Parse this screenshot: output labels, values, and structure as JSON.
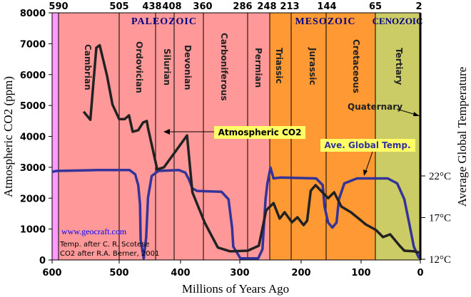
{
  "chart_data": {
    "type": "line",
    "xlabel": "Millions of Years Ago",
    "ylabel": "Atmospheric CO2 (ppm)",
    "y2label": "Average Global Temperature",
    "xlim": [
      600,
      0
    ],
    "ylim": [
      0,
      8000
    ],
    "y2lim": [
      12,
      22
    ],
    "x_ticks": [
      600,
      500,
      400,
      300,
      200,
      100,
      0
    ],
    "y_ticks": [
      0,
      1000,
      2000,
      3000,
      4000,
      5000,
      6000,
      7000,
      8000
    ],
    "y2_ticks": [
      "12°C",
      "17°C",
      "22°C"
    ],
    "top_ticks": [
      "590",
      "505",
      "438",
      "408",
      "360",
      "286",
      "248",
      "213",
      "144",
      "65",
      "2"
    ],
    "eras": [
      {
        "name": "PALEOZOIC",
        "color": "#ff9999"
      },
      {
        "name": "MESOZOIC",
        "color": "#ff9933"
      },
      {
        "name": "CENOZOIC",
        "color": "#cccc66"
      }
    ],
    "precambrian_color": "#ff99ff",
    "periods": [
      "Cambrian",
      "Ordovician",
      "Silurian",
      "Devonian",
      "Carboniferous",
      "Permian",
      "Triassic",
      "Jurassic",
      "Cretaceous",
      "Tertiary"
    ],
    "quaternary_label": "Quaternary",
    "series": [
      {
        "name": "Atmospheric CO2",
        "axis": "left",
        "color": "#222222",
        "label_bg": "#ffff66",
        "x": [
          553,
          543,
          534,
          529,
          518,
          510,
          500,
          491,
          484,
          478,
          469,
          461,
          455,
          453,
          438,
          427,
          389,
          380,
          359,
          337,
          316,
          287,
          269,
          257,
          245,
          235,
          227,
          215,
          206,
          196,
          190,
          184,
          176,
          155,
          145,
          133,
          117,
          104,
          92,
          75,
          63,
          51,
          35,
          27,
          10,
          0
        ],
        "y": [
          4800,
          4540,
          6870,
          6950,
          5950,
          5030,
          4560,
          4560,
          4680,
          4150,
          4200,
          4450,
          4500,
          4270,
          2930,
          3000,
          4030,
          2190,
          1200,
          400,
          280,
          300,
          460,
          1610,
          1840,
          1340,
          1545,
          1220,
          1380,
          1130,
          1270,
          2240,
          2420,
          2000,
          2190,
          1730,
          1545,
          1340,
          1150,
          970,
          740,
          830,
          460,
          300,
          280,
          230
        ]
      },
      {
        "name": "Ave. Global Temp.",
        "axis": "right",
        "color": "#333399",
        "label_bg": "#ffff66",
        "x": [
          600,
          593,
          534,
          483,
          474,
          469,
          466,
          465,
          460,
          456,
          453,
          447,
          436,
          403,
          392,
          386,
          380,
          372,
          331,
          319,
          313,
          311,
          299,
          270,
          263,
          258,
          255,
          250,
          245,
          234,
          175,
          164,
          161,
          155,
          148,
          141,
          137,
          128,
          107,
          55,
          39,
          27,
          19,
          11,
          2
        ],
        "y": [
          22.5,
          22.6,
          22.7,
          22.7,
          22.2,
          20.9,
          18.6,
          14.3,
          12.1,
          14.6,
          19.4,
          22.0,
          22.6,
          22.7,
          22.4,
          21.6,
          20.5,
          20.2,
          20.1,
          19.2,
          15.8,
          13.5,
          12.1,
          12.1,
          13.2,
          19.2,
          21.1,
          23.0,
          21.7,
          21.8,
          21.7,
          20.9,
          18.3,
          16.4,
          15.8,
          16.4,
          19.2,
          21.1,
          21.7,
          21.7,
          21.1,
          19.2,
          16.4,
          13.5,
          12.1
        ]
      }
    ],
    "credits": {
      "website": "www.geocraft.com",
      "temp_source": "Temp. after C. R. Scotese",
      "co2_source": "CO2 after R.A. Berner, 2001"
    }
  }
}
